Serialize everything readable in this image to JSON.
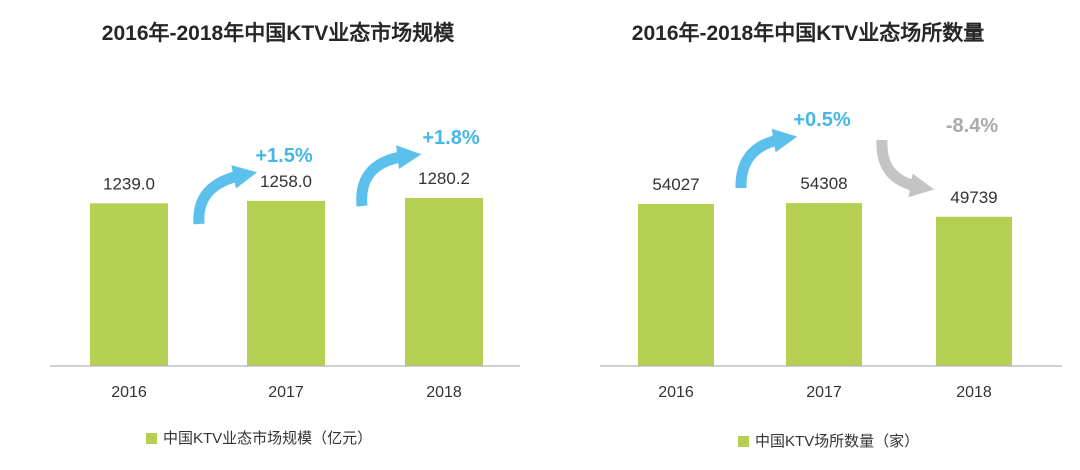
{
  "colors": {
    "bar": "#b5cf52",
    "growth_arrow": "#5bc0eb",
    "growth_text": "#45b6e8",
    "decline_arrow": "#c4c4c4",
    "decline_text": "#a9a9a9",
    "axis": "#b3b3b3",
    "text": "#333333",
    "title": "#262626"
  },
  "chart_data": [
    {
      "type": "bar",
      "title": "2016年-2018年中国KTV业态市场规模",
      "categories": [
        "2016",
        "2017",
        "2018"
      ],
      "values": [
        1239.0,
        1258.0,
        1280.2
      ],
      "value_labels": [
        "1239.0",
        "1258.0",
        "1280.2"
      ],
      "ylim": [
        0,
        1600
      ],
      "grid": false,
      "legend": {
        "label": "中国KTV业态市场规模（亿元）",
        "position": "bottom-left"
      },
      "annotations": [
        {
          "text": "+1.5%",
          "between": [
            0,
            1
          ],
          "direction": "up"
        },
        {
          "text": "+1.8%",
          "between": [
            1,
            2
          ],
          "direction": "up"
        }
      ]
    },
    {
      "type": "bar",
      "title": "2016年-2018年中国KTV业态场所数量",
      "categories": [
        "2016",
        "2017",
        "2018"
      ],
      "values": [
        54027,
        54308,
        49739
      ],
      "value_labels": [
        "54027",
        "54308",
        "49739"
      ],
      "ylim": [
        0,
        70000
      ],
      "grid": false,
      "legend": {
        "label": "中国KTV场所数量（家）",
        "position": "bottom-left"
      },
      "annotations": [
        {
          "text": "+0.5%",
          "between": [
            0,
            1
          ],
          "direction": "up"
        },
        {
          "text": "-8.4%",
          "between": [
            1,
            2
          ],
          "direction": "down"
        }
      ]
    }
  ]
}
